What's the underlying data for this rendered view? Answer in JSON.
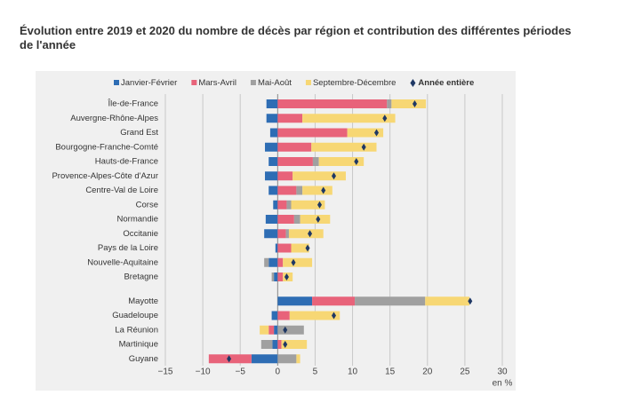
{
  "chart_data": {
    "type": "stacked-barh",
    "title": "Évolution entre 2019 et 2020 du nombre de décès par région et contribution des différentes périodes de l'année",
    "xlabel": "en %",
    "categories": [
      "Île-de-France",
      "Auvergne-Rhône-Alpes",
      "Grand Est",
      "Bourgogne-Franche-Comté",
      "Hauts-de-France",
      "Provence-Alpes-Côte d'Azur",
      "Centre-Val de Loire",
      "Corse",
      "Normandie",
      "Occitanie",
      "Pays de la Loire",
      "Nouvelle-Aquitaine",
      "Bretagne",
      "Mayotte",
      "Guadeloupe",
      "La Réunion",
      "Martinique",
      "Guyane"
    ],
    "series": [
      {
        "name": "Janvier-Février",
        "color": "#2e6db4",
        "values": [
          -1.5,
          -1.5,
          -1,
          -1.7,
          -1.2,
          -1.7,
          -1.2,
          -0.6,
          -1.6,
          -1.8,
          -0.3,
          -1.2,
          -0.5,
          4.6,
          -0.8,
          -0.5,
          -0.7,
          -3.5
        ]
      },
      {
        "name": "Mars-Avril",
        "color": "#e8637a",
        "values": [
          14.6,
          3.3,
          9.3,
          4.5,
          4.7,
          2,
          2.5,
          1.2,
          2.2,
          1.1,
          1.8,
          0.7,
          0.7,
          5.7,
          1.6,
          -0.7,
          0.5,
          -5.7
        ]
      },
      {
        "name": "Mai-Août",
        "color": "#a0a0a0",
        "values": [
          0.6,
          0,
          0,
          0,
          0.8,
          0,
          0.8,
          0.6,
          0.8,
          0.4,
          0,
          -0.6,
          -0.3,
          9.4,
          0,
          3.5,
          -1.5,
          2.5
        ]
      },
      {
        "name": "Septembre-Décembre",
        "color": "#f7d774",
        "values": [
          4.6,
          12.4,
          4.8,
          8.7,
          6,
          7.1,
          4,
          4.5,
          4,
          4.6,
          2.4,
          3.9,
          1.3,
          5.9,
          6.7,
          -1.2,
          3.4,
          0.5
        ]
      }
    ],
    "total": {
      "name": "Année entière",
      "color": "#1f3864",
      "values": [
        18.3,
        14.3,
        13.2,
        11.5,
        10.5,
        7.5,
        6.1,
        5.6,
        5.4,
        4.3,
        4,
        2.1,
        1.2,
        25.7,
        7.5,
        1,
        1,
        -6.5
      ]
    },
    "xlim": [
      -15,
      30
    ],
    "xticks": [
      {
        "value": -15,
        "label": "−15"
      },
      {
        "value": -10,
        "label": "−10"
      },
      {
        "value": -5,
        "label": "−5"
      },
      0,
      5,
      10,
      15,
      20,
      25,
      30
    ],
    "grid": true
  }
}
